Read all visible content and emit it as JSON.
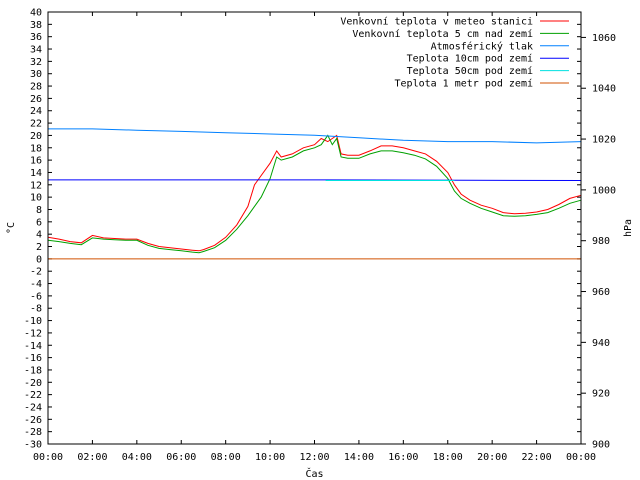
{
  "chart_data": {
    "type": "line",
    "xlabel": "Čas",
    "ylabel": "°C",
    "y2label": "hPa",
    "x_ticks": [
      "00:00",
      "02:00",
      "04:00",
      "06:00",
      "08:00",
      "10:00",
      "12:00",
      "14:00",
      "16:00",
      "18:00",
      "20:00",
      "22:00",
      "00:00"
    ],
    "xlim": [
      0,
      24
    ],
    "ylim": [
      -30,
      40
    ],
    "y_step": 2,
    "y2lim": [
      900,
      1070
    ],
    "y2_ticks": [
      900,
      920,
      940,
      960,
      980,
      1000,
      1020,
      1040,
      1060
    ],
    "grid": false,
    "legend_position": "top-right",
    "series": [
      {
        "name": "Venkovní teplota v meteo stanici",
        "color": "#ff0000",
        "axis": "left",
        "x": [
          0,
          0.5,
          1,
          1.5,
          2,
          2.5,
          3,
          3.5,
          4,
          4.5,
          5,
          5.5,
          6,
          6.5,
          6.8,
          7,
          7.5,
          8,
          8.5,
          9,
          9.3,
          9.6,
          10,
          10.3,
          10.5,
          11,
          11.5,
          12,
          12.3,
          12.6,
          12.8,
          13,
          13.2,
          13.5,
          14,
          14.5,
          15,
          15.5,
          16,
          16.5,
          17,
          17.5,
          18,
          18.3,
          18.6,
          19,
          19.5,
          20,
          20.5,
          21,
          21.5,
          22,
          22.5,
          23,
          23.5,
          24
        ],
        "y": [
          3.5,
          3.2,
          2.8,
          2.6,
          3.8,
          3.4,
          3.3,
          3.2,
          3.2,
          2.5,
          2.0,
          1.8,
          1.6,
          1.4,
          1.3,
          1.5,
          2.2,
          3.5,
          5.5,
          8.5,
          12.0,
          13.5,
          15.5,
          17.5,
          16.5,
          17.0,
          18.0,
          18.5,
          19.5,
          19.0,
          19.5,
          20.0,
          17.0,
          16.8,
          16.8,
          17.5,
          18.3,
          18.3,
          18.0,
          17.5,
          17.0,
          15.8,
          14.0,
          12.0,
          10.5,
          9.5,
          8.7,
          8.2,
          7.5,
          7.3,
          7.4,
          7.6,
          8.0,
          8.8,
          9.8,
          10.3
        ]
      },
      {
        "name": "Venkovní teplota 5 cm nad zemí",
        "color": "#00a000",
        "axis": "left",
        "x": [
          0,
          0.5,
          1,
          1.5,
          2,
          2.5,
          3,
          3.5,
          4,
          4.5,
          5,
          5.5,
          6,
          6.5,
          6.8,
          7,
          7.5,
          8,
          8.5,
          9,
          9.3,
          9.6,
          10,
          10.3,
          10.5,
          11,
          11.5,
          12,
          12.3,
          12.6,
          12.8,
          13,
          13.2,
          13.5,
          14,
          14.5,
          15,
          15.5,
          16,
          16.5,
          17,
          17.5,
          18,
          18.3,
          18.6,
          19,
          19.5,
          20,
          20.5,
          21,
          21.5,
          22,
          22.5,
          23,
          23.5,
          24
        ],
        "y": [
          3.0,
          2.8,
          2.5,
          2.3,
          3.4,
          3.2,
          3.1,
          3.0,
          3.0,
          2.2,
          1.7,
          1.5,
          1.3,
          1.1,
          1.0,
          1.2,
          1.8,
          3.0,
          4.8,
          7.0,
          8.5,
          10.0,
          13.0,
          16.5,
          16.0,
          16.5,
          17.5,
          18.0,
          18.5,
          20.0,
          18.5,
          19.5,
          16.5,
          16.3,
          16.3,
          17.0,
          17.5,
          17.5,
          17.2,
          16.8,
          16.2,
          15.0,
          13.0,
          11.0,
          9.8,
          9.0,
          8.2,
          7.6,
          7.0,
          6.9,
          7.0,
          7.2,
          7.5,
          8.2,
          9.0,
          9.5
        ]
      },
      {
        "name": "Atmosférický tlak",
        "color": "#0080ff",
        "axis": "right",
        "x": [
          0,
          2,
          4,
          6,
          8,
          10,
          12,
          13,
          14,
          16,
          18,
          20,
          22,
          24
        ],
        "y": [
          1024,
          1024,
          1023.5,
          1023,
          1022.5,
          1022,
          1021.5,
          1021,
          1020.5,
          1019.5,
          1019,
          1019,
          1018.5,
          1019
        ]
      },
      {
        "name": "Teplota 10cm pod zemí",
        "color": "#0000ff",
        "axis": "left",
        "x": [
          0,
          12.5,
          24
        ],
        "y": [
          12.8,
          12.8,
          12.7
        ]
      },
      {
        "name": "Teplota 50cm pod zemí",
        "color": "#00e0e0",
        "axis": "left",
        "x": [
          12.5,
          18.3
        ],
        "y": [
          12.7,
          12.7
        ]
      },
      {
        "name": "Teplota 1 metr pod zemí",
        "color": "#d05000",
        "axis": "left",
        "x": [
          0,
          24
        ],
        "y": [
          0,
          0
        ]
      }
    ]
  }
}
